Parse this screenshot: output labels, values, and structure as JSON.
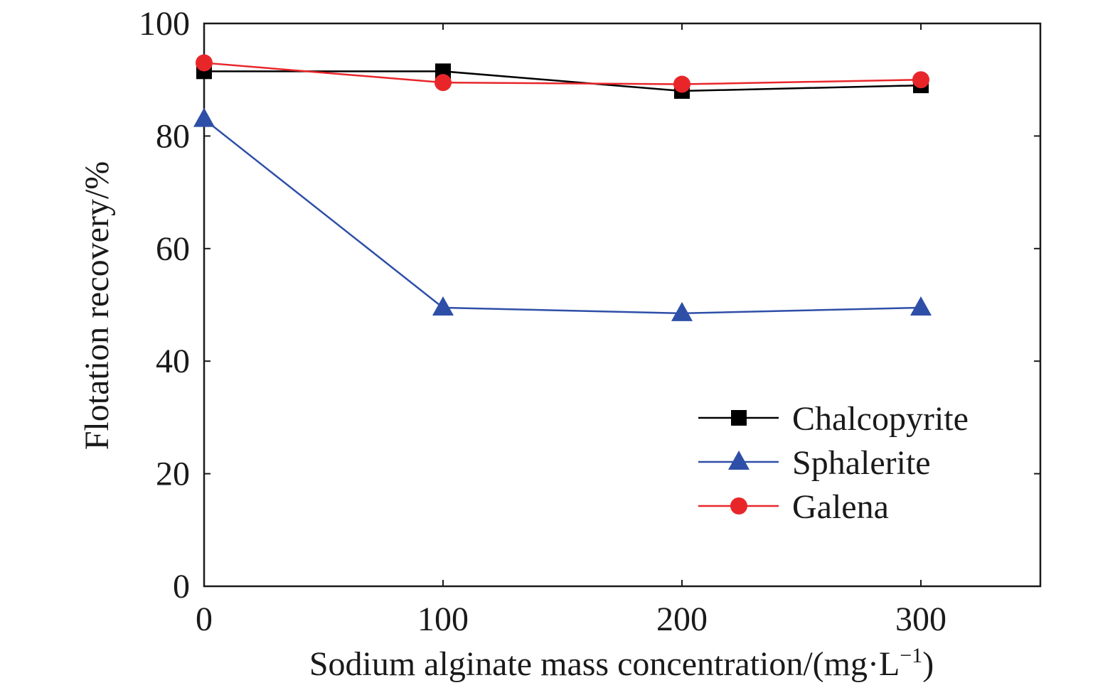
{
  "chart_data": {
    "type": "line",
    "xlabel_main": "Sodium alginate mass concentration/(mg·L",
    "xlabel_sup": "−1",
    "xlabel_end": ")",
    "ylabel": "Flotation recovery/%",
    "xlim": [
      0,
      350
    ],
    "ylim": [
      0,
      100
    ],
    "x_ticks": [
      0,
      100,
      200,
      300
    ],
    "x_tick_labels": [
      "0",
      "100",
      "200",
      "300"
    ],
    "y_ticks": [
      0,
      20,
      40,
      60,
      80,
      100
    ],
    "y_tick_labels": [
      "0",
      "20",
      "40",
      "60",
      "80",
      "100"
    ],
    "x": [
      0,
      100,
      200,
      300
    ],
    "legend_position": "right",
    "series": [
      {
        "name": "Chalcopyrite",
        "values": [
          91.5,
          91.5,
          88.0,
          89.0
        ],
        "color": "#000000",
        "marker": "square"
      },
      {
        "name": "Sphalerite",
        "values": [
          83.0,
          49.5,
          48.5,
          49.5
        ],
        "color": "#2e4fa8",
        "marker": "triangle"
      },
      {
        "name": "Galena",
        "values": [
          93.0,
          89.5,
          89.2,
          90.0
        ],
        "color": "#e8262a",
        "marker": "circle"
      }
    ]
  }
}
